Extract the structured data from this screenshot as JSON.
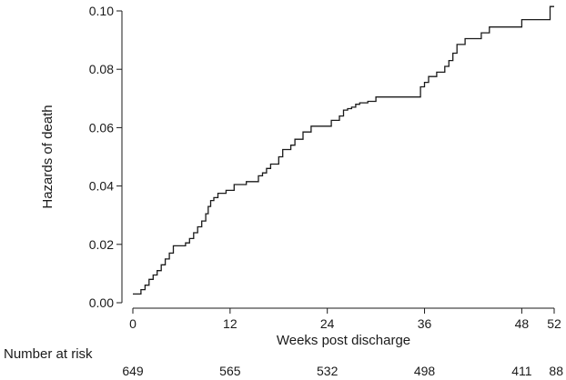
{
  "chart_data": {
    "type": "line",
    "subtype": "step",
    "title": "",
    "xlabel": "Weeks post discharge",
    "ylabel": "Hazards of death",
    "xlim": [
      0,
      52
    ],
    "ylim": [
      0,
      0.1
    ],
    "x_ticks": [
      0,
      12,
      24,
      36,
      48,
      52
    ],
    "y_ticks": [
      "0.00",
      "0.02",
      "0.04",
      "0.06",
      "0.08",
      "0.10"
    ],
    "grid": false,
    "legend": "none",
    "line_color": "#1a1a1a",
    "series": [
      {
        "x": [
          0,
          1,
          1.5,
          2,
          2.5,
          3,
          3.5,
          4,
          4.5,
          5,
          6.5,
          7,
          7.5,
          8,
          8.5,
          9,
          9.3,
          9.6,
          10,
          10.5,
          11.5,
          12.5,
          14,
          15.5,
          16,
          16.5,
          17,
          18,
          18.5,
          19.5,
          20,
          21,
          22,
          24.5,
          25,
          25.5,
          26,
          26.5,
          27,
          27.5,
          28,
          29,
          30,
          32,
          35,
          35.5,
          36,
          36.5,
          37.5,
          38.5,
          39,
          39.5,
          40,
          41,
          42.5,
          43,
          44,
          47,
          48,
          48.5,
          51.5,
          52
        ],
        "y": [
          0.003,
          0.0045,
          0.006,
          0.008,
          0.0095,
          0.011,
          0.013,
          0.015,
          0.017,
          0.0195,
          0.0205,
          0.022,
          0.024,
          0.026,
          0.028,
          0.0305,
          0.033,
          0.035,
          0.036,
          0.0375,
          0.0385,
          0.0405,
          0.0415,
          0.0435,
          0.0445,
          0.046,
          0.0475,
          0.05,
          0.0525,
          0.054,
          0.056,
          0.0585,
          0.0605,
          0.0625,
          0.0625,
          0.064,
          0.066,
          0.0665,
          0.067,
          0.068,
          0.0685,
          0.069,
          0.0705,
          0.0705,
          0.0705,
          0.074,
          0.0755,
          0.0775,
          0.079,
          0.081,
          0.083,
          0.0855,
          0.0885,
          0.0905,
          0.0905,
          0.0925,
          0.0945,
          0.0945,
          0.097,
          0.097,
          0.1015,
          0.1015
        ]
      }
    ],
    "risk_table": {
      "label": "Number at risk",
      "weeks": [
        0,
        12,
        24,
        36,
        48,
        52
      ],
      "counts": [
        "649",
        "565",
        "532",
        "498",
        "411",
        "88"
      ]
    }
  }
}
